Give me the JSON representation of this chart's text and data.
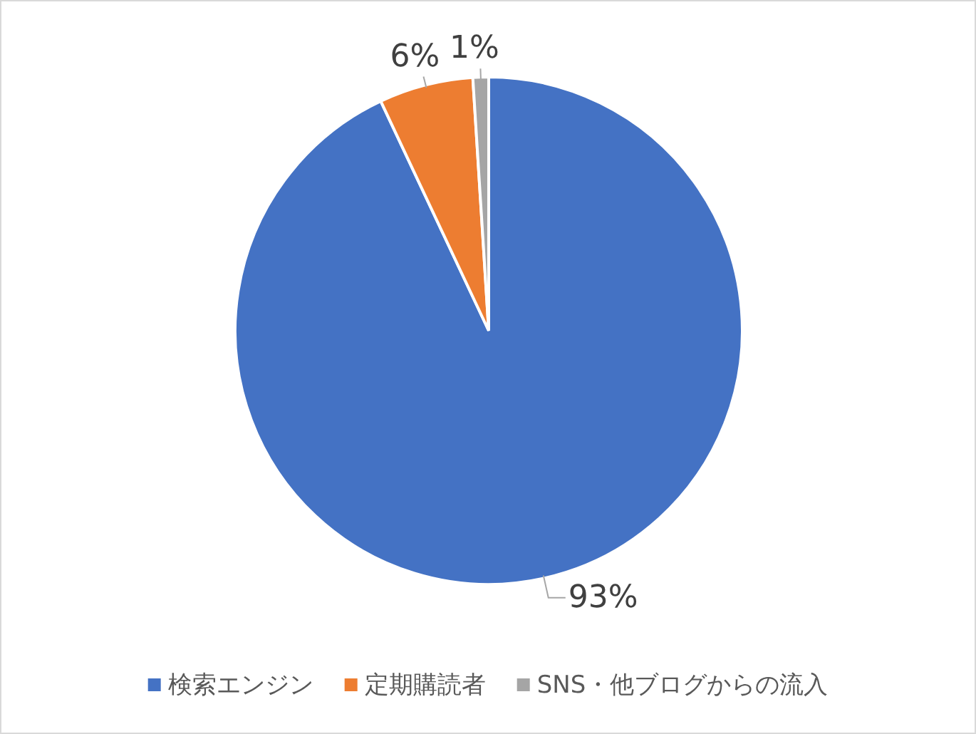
{
  "chart_data": {
    "type": "pie",
    "categories": [
      "検索エンジン",
      "定期購読者",
      "SNS・他ブログからの流入"
    ],
    "values": [
      93,
      6,
      1
    ],
    "colors": [
      "#4472c4",
      "#ed7d31",
      "#a5a5a5"
    ],
    "value_labels": [
      "93%",
      "6%",
      "1%"
    ],
    "legend": "bottom"
  }
}
